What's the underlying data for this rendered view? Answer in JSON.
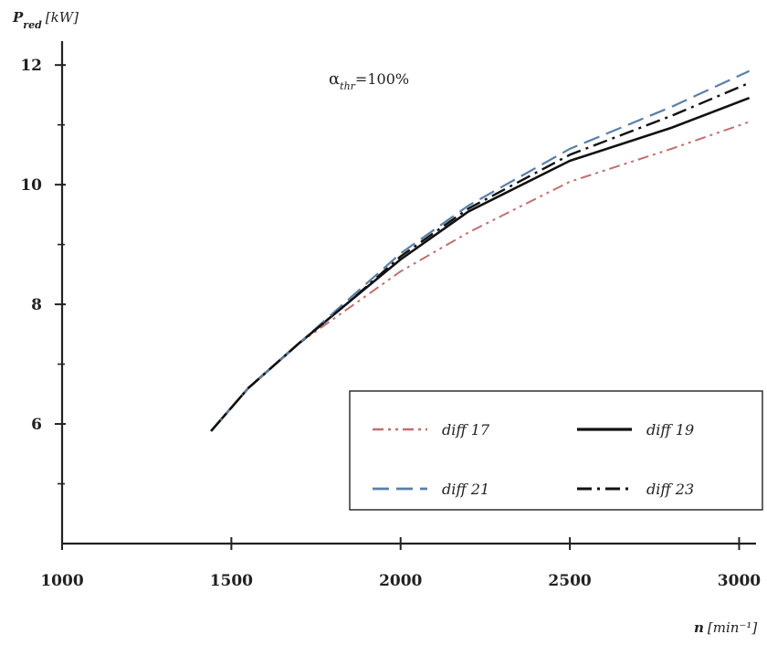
{
  "chart_data": {
    "type": "line",
    "xlabel_prefix": "n",
    "xlabel_unit": "[min⁻¹]",
    "ylabel_prefix": "P",
    "ylabel_sub": "red",
    "ylabel_unit": "[kW]",
    "annotation_main": "α",
    "annotation_sub": "thr",
    "annotation_tail": "=100%",
    "xlim": [
      1000,
      3050
    ],
    "ylim": [
      4.0,
      12.4
    ],
    "x_ticks": [
      1000,
      1500,
      2000,
      2500,
      3000
    ],
    "x_tick_labels": [
      "1000",
      "1500",
      "2000",
      "2500",
      "3000"
    ],
    "y_ticks": [
      6,
      8,
      10,
      12
    ],
    "y_tick_labels": [
      "6",
      "8",
      "10",
      "12"
    ],
    "y_minor_ticks": [
      5,
      7,
      9,
      11
    ],
    "legend_position": "lower-right",
    "series": [
      {
        "name": "diff 17",
        "style": "dash-dot-dot",
        "color": "#c07070",
        "points": [
          [
            1440,
            5.88
          ],
          [
            1550,
            6.6
          ],
          [
            1700,
            7.35
          ],
          [
            1850,
            7.95
          ],
          [
            2000,
            8.55
          ],
          [
            2200,
            9.2
          ],
          [
            2500,
            10.05
          ],
          [
            2800,
            10.6
          ],
          [
            3030,
            11.05
          ]
        ]
      },
      {
        "name": "diff 19",
        "style": "solid",
        "color": "#111111",
        "points": [
          [
            1440,
            5.88
          ],
          [
            1550,
            6.6
          ],
          [
            1700,
            7.35
          ],
          [
            1850,
            8.05
          ],
          [
            2000,
            8.75
          ],
          [
            2200,
            9.55
          ],
          [
            2500,
            10.4
          ],
          [
            2800,
            10.95
          ],
          [
            3030,
            11.45
          ]
        ]
      },
      {
        "name": "diff 21",
        "style": "dashed",
        "color": "#5a7fa8",
        "points": [
          [
            1440,
            5.88
          ],
          [
            1550,
            6.6
          ],
          [
            1700,
            7.35
          ],
          [
            1850,
            8.1
          ],
          [
            2000,
            8.85
          ],
          [
            2200,
            9.65
          ],
          [
            2500,
            10.6
          ],
          [
            2800,
            11.3
          ],
          [
            3030,
            11.9
          ]
        ]
      },
      {
        "name": "diff 23",
        "style": "dash-dot",
        "color": "#111111",
        "points": [
          [
            1440,
            5.88
          ],
          [
            1550,
            6.6
          ],
          [
            1700,
            7.35
          ],
          [
            1850,
            8.05
          ],
          [
            2000,
            8.8
          ],
          [
            2200,
            9.6
          ],
          [
            2500,
            10.5
          ],
          [
            2800,
            11.15
          ],
          [
            3030,
            11.7
          ]
        ]
      }
    ]
  }
}
